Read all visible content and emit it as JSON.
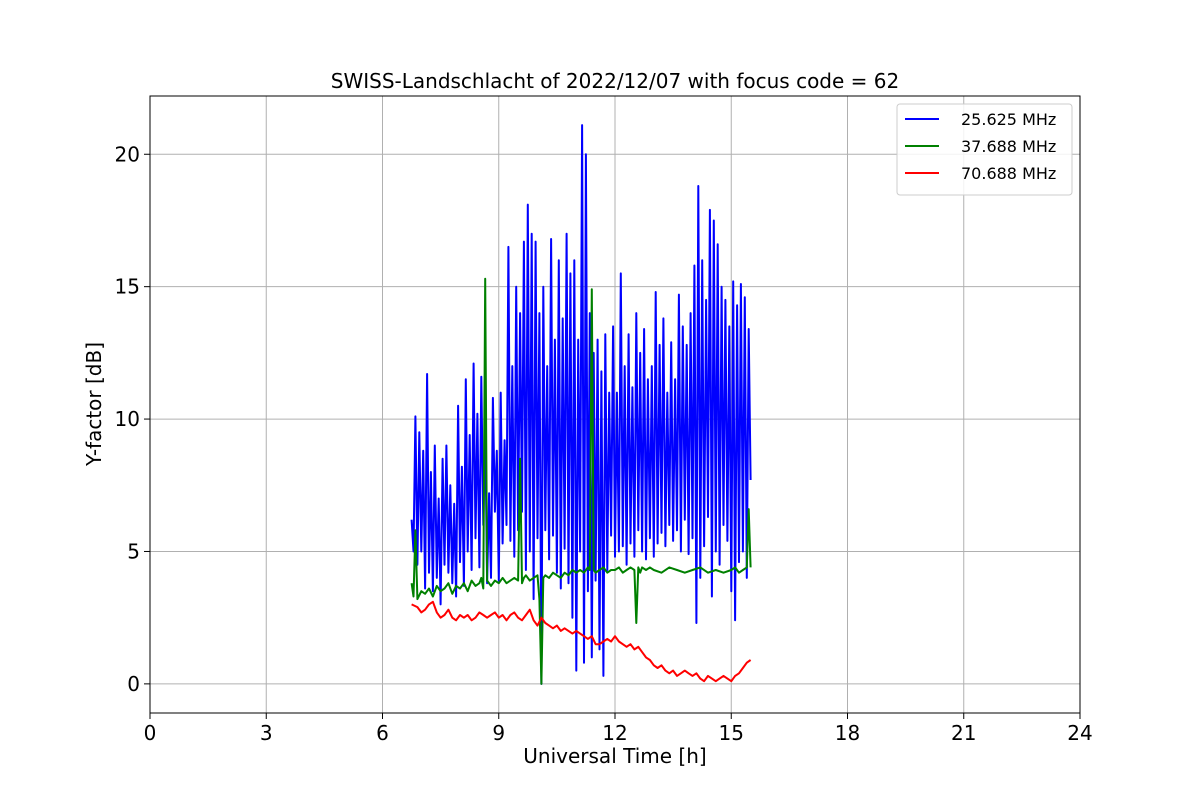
{
  "chart_data": {
    "type": "line",
    "title": "SWISS-Landschlacht of 2022/12/07 with focus code = 62",
    "xlabel": "Universal Time [h]",
    "ylabel": "Y-factor [dB]",
    "xlim": [
      0,
      24
    ],
    "ylim": [
      -1.1,
      22.2
    ],
    "xticks": [
      0,
      3,
      6,
      9,
      12,
      15,
      18,
      21,
      24
    ],
    "yticks": [
      0,
      5,
      10,
      15,
      20
    ],
    "grid": true,
    "legend_position": "top-right",
    "series": [
      {
        "name": "25.625 MHz",
        "color": "#0000ff",
        "x": [
          6.75,
          6.8,
          6.85,
          6.9,
          6.95,
          7.0,
          7.05,
          7.1,
          7.15,
          7.2,
          7.25,
          7.3,
          7.35,
          7.4,
          7.45,
          7.5,
          7.55,
          7.6,
          7.65,
          7.7,
          7.75,
          7.8,
          7.85,
          7.9,
          7.95,
          8.0,
          8.05,
          8.1,
          8.15,
          8.2,
          8.25,
          8.3,
          8.35,
          8.4,
          8.45,
          8.5,
          8.55,
          8.6,
          8.65,
          8.7,
          8.75,
          8.8,
          8.85,
          8.9,
          8.95,
          9.0,
          9.05,
          9.1,
          9.15,
          9.2,
          9.25,
          9.3,
          9.35,
          9.4,
          9.45,
          9.5,
          9.55,
          9.6,
          9.65,
          9.7,
          9.75,
          9.8,
          9.85,
          9.9,
          9.95,
          10.0,
          10.05,
          10.1,
          10.15,
          10.2,
          10.25,
          10.3,
          10.35,
          10.4,
          10.45,
          10.5,
          10.55,
          10.6,
          10.65,
          10.7,
          10.75,
          10.8,
          10.85,
          10.9,
          10.95,
          11.0,
          11.05,
          11.1,
          11.15,
          11.2,
          11.25,
          11.3,
          11.35,
          11.4,
          11.45,
          11.5,
          11.55,
          11.6,
          11.65,
          11.7,
          11.75,
          11.8,
          11.85,
          11.9,
          11.95,
          12.0,
          12.05,
          12.1,
          12.15,
          12.2,
          12.25,
          12.3,
          12.35,
          12.4,
          12.45,
          12.5,
          12.55,
          12.6,
          12.65,
          12.7,
          12.75,
          12.8,
          12.85,
          12.9,
          12.95,
          13.0,
          13.05,
          13.1,
          13.15,
          13.2,
          13.25,
          13.3,
          13.35,
          13.4,
          13.45,
          13.5,
          13.55,
          13.6,
          13.65,
          13.7,
          13.75,
          13.8,
          13.85,
          13.9,
          13.95,
          14.0,
          14.05,
          14.1,
          14.15,
          14.2,
          14.25,
          14.3,
          14.35,
          14.4,
          14.45,
          14.5,
          14.55,
          14.6,
          14.65,
          14.7,
          14.75,
          14.8,
          14.85,
          14.9,
          14.95,
          15.0,
          15.05,
          15.1,
          15.15,
          15.2,
          15.25,
          15.3,
          15.35,
          15.4,
          15.45,
          15.5
        ],
        "y": [
          6.2,
          5.0,
          10.1,
          4.5,
          9.5,
          5.0,
          8.8,
          3.6,
          11.7,
          4.2,
          8.0,
          3.5,
          9.0,
          4.0,
          7.0,
          3.0,
          8.5,
          4.5,
          9.0,
          4.2,
          7.5,
          3.8,
          6.8,
          3.3,
          10.5,
          4.6,
          8.2,
          3.7,
          11.5,
          5.0,
          9.4,
          4.3,
          12.1,
          5.5,
          10.2,
          4.4,
          11.6,
          6.0,
          9.8,
          3.8,
          7.2,
          4.0,
          10.8,
          6.5,
          8.8,
          3.9,
          11.0,
          5.3,
          9.2,
          6.0,
          16.5,
          5.4,
          12.0,
          4.8,
          15.0,
          5.8,
          14.0,
          6.5,
          16.7,
          4.3,
          18.1,
          5.0,
          17.0,
          3.2,
          16.7,
          5.5,
          14.0,
          0.0,
          15.0,
          5.8,
          12.0,
          4.7,
          16.8,
          5.6,
          13.0,
          4.2,
          16.0,
          3.6,
          13.8,
          5.1,
          17.0,
          3.8,
          15.5,
          2.5,
          16.0,
          0.5,
          13.0,
          5.0,
          21.1,
          0.8,
          20.0,
          3.5,
          14.0,
          1.0,
          12.5,
          3.9,
          13.0,
          1.3,
          11.8,
          0.3,
          13.2,
          4.3,
          11.0,
          5.6,
          13.5,
          4.8,
          11.0,
          5.0,
          15.5,
          5.2,
          12.0,
          4.5,
          13.2,
          5.3,
          11.2,
          4.8,
          14.0,
          5.8,
          12.5,
          5.0,
          13.4,
          4.7,
          11.5,
          5.5,
          12.0,
          4.8,
          14.8,
          5.3,
          12.8,
          5.7,
          13.8,
          5.2,
          11.0,
          6.0,
          12.9,
          5.4,
          11.5,
          5.8,
          14.7,
          5.0,
          13.5,
          6.2,
          12.8,
          4.9,
          14.0,
          5.5,
          15.8,
          2.3,
          18.8,
          4.0,
          16.0,
          5.2,
          14.5,
          6.3,
          17.9,
          3.3,
          17.5,
          5.0,
          16.6,
          4.5,
          15.0,
          6.0,
          14.5,
          5.4,
          13.5,
          3.5,
          15.2,
          2.4,
          14.3,
          4.6,
          15.1,
          5.0,
          14.6,
          4.0,
          13.4,
          7.7
        ]
      },
      {
        "name": "37.688 MHz",
        "color": "#008000",
        "x": [
          6.75,
          6.8,
          6.85,
          6.9,
          7.0,
          7.1,
          7.2,
          7.3,
          7.4,
          7.5,
          7.6,
          7.7,
          7.8,
          7.9,
          8.0,
          8.1,
          8.2,
          8.3,
          8.4,
          8.5,
          8.55,
          8.6,
          8.65,
          8.7,
          8.8,
          8.9,
          9.0,
          9.1,
          9.2,
          9.3,
          9.4,
          9.5,
          9.55,
          9.6,
          9.65,
          9.7,
          9.8,
          9.9,
          10.0,
          10.05,
          10.1,
          10.15,
          10.2,
          10.3,
          10.4,
          10.5,
          10.6,
          10.7,
          10.8,
          10.9,
          11.0,
          11.1,
          11.2,
          11.3,
          11.35,
          11.4,
          11.45,
          11.5,
          11.6,
          11.7,
          11.8,
          11.9,
          12.0,
          12.1,
          12.2,
          12.3,
          12.4,
          12.5,
          12.55,
          12.6,
          12.65,
          12.7,
          12.8,
          12.9,
          13.0,
          13.2,
          13.4,
          13.6,
          13.8,
          14.0,
          14.2,
          14.4,
          14.6,
          14.8,
          15.0,
          15.1,
          15.2,
          15.3,
          15.4,
          15.45,
          15.5
        ],
        "y": [
          3.8,
          3.3,
          5.8,
          3.2,
          3.5,
          3.4,
          3.6,
          3.3,
          3.7,
          3.5,
          3.6,
          3.8,
          3.4,
          3.7,
          3.6,
          3.8,
          3.5,
          3.9,
          3.7,
          3.8,
          4.0,
          3.6,
          15.3,
          3.9,
          3.7,
          3.9,
          3.8,
          4.0,
          3.8,
          3.9,
          4.0,
          3.9,
          8.5,
          3.8,
          4.0,
          4.1,
          3.9,
          4.0,
          4.1,
          3.2,
          0.0,
          4.0,
          4.1,
          4.0,
          4.2,
          4.1,
          4.0,
          4.2,
          4.1,
          4.3,
          4.2,
          4.3,
          4.2,
          4.4,
          4.3,
          14.9,
          4.3,
          4.2,
          4.3,
          4.4,
          4.2,
          4.3,
          4.3,
          4.4,
          4.2,
          4.3,
          4.4,
          4.3,
          2.3,
          4.4,
          4.2,
          4.4,
          4.3,
          4.4,
          4.3,
          4.2,
          4.4,
          4.3,
          4.2,
          4.3,
          4.4,
          4.2,
          4.3,
          4.2,
          4.3,
          4.4,
          4.2,
          4.3,
          4.4,
          6.6,
          4.4
        ]
      },
      {
        "name": "70.688 MHz",
        "color": "#ff0000",
        "x": [
          6.75,
          6.9,
          7.0,
          7.1,
          7.2,
          7.3,
          7.4,
          7.5,
          7.6,
          7.7,
          7.8,
          7.9,
          8.0,
          8.1,
          8.2,
          8.3,
          8.4,
          8.5,
          8.6,
          8.7,
          8.8,
          8.9,
          9.0,
          9.1,
          9.2,
          9.3,
          9.4,
          9.5,
          9.6,
          9.7,
          9.8,
          9.9,
          10.0,
          10.1,
          10.2,
          10.3,
          10.4,
          10.5,
          10.6,
          10.7,
          10.8,
          10.9,
          11.0,
          11.1,
          11.2,
          11.3,
          11.4,
          11.5,
          11.6,
          11.7,
          11.8,
          11.9,
          12.0,
          12.1,
          12.2,
          12.3,
          12.4,
          12.5,
          12.6,
          12.7,
          12.8,
          12.9,
          13.0,
          13.1,
          13.2,
          13.3,
          13.4,
          13.5,
          13.6,
          13.7,
          13.8,
          13.9,
          14.0,
          14.1,
          14.2,
          14.3,
          14.4,
          14.5,
          14.6,
          14.7,
          14.8,
          14.9,
          15.0,
          15.1,
          15.2,
          15.3,
          15.4,
          15.5
        ],
        "y": [
          3.0,
          2.9,
          2.7,
          2.8,
          3.0,
          3.1,
          2.7,
          2.5,
          2.6,
          2.8,
          2.5,
          2.4,
          2.6,
          2.5,
          2.6,
          2.4,
          2.5,
          2.7,
          2.6,
          2.5,
          2.6,
          2.7,
          2.5,
          2.6,
          2.4,
          2.6,
          2.7,
          2.5,
          2.4,
          2.6,
          2.8,
          2.4,
          2.2,
          2.5,
          2.3,
          2.2,
          2.1,
          2.2,
          2.0,
          2.1,
          2.0,
          1.9,
          2.0,
          1.9,
          1.8,
          1.7,
          1.8,
          1.5,
          1.5,
          1.6,
          1.7,
          1.6,
          1.8,
          1.6,
          1.5,
          1.4,
          1.5,
          1.3,
          1.4,
          1.2,
          1.0,
          0.9,
          0.7,
          0.6,
          0.7,
          0.5,
          0.4,
          0.5,
          0.3,
          0.4,
          0.5,
          0.4,
          0.3,
          0.4,
          0.2,
          0.1,
          0.3,
          0.2,
          0.1,
          0.2,
          0.3,
          0.2,
          0.1,
          0.3,
          0.4,
          0.6,
          0.8,
          0.9
        ]
      }
    ]
  }
}
